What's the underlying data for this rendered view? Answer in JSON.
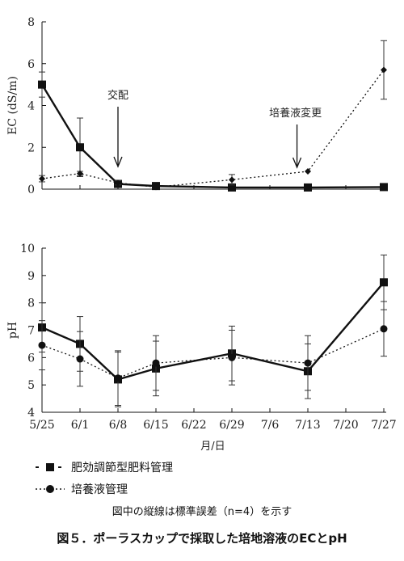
{
  "chart_data": {
    "x_ticks": [
      "5/25",
      "6/1",
      "6/8",
      "6/15",
      "6/22",
      "6/29",
      "7/6",
      "7/13",
      "7/20",
      "7/27"
    ],
    "xlabel": "月/日",
    "series_names": [
      "肥効調節型肥料管理",
      "培養液管理"
    ],
    "charts": [
      {
        "type": "line",
        "ylabel": "EC (dS/m)",
        "ylim": [
          0,
          8
        ],
        "yticks": [
          0,
          2,
          4,
          6,
          8
        ],
        "annotations": [
          {
            "text": "交配",
            "x": "6/8"
          },
          {
            "text": "培養液変更",
            "x": "7/11"
          }
        ],
        "series": [
          {
            "name": "肥効調節型肥料管理",
            "marker": "square",
            "style": "solid",
            "x": [
              "5/25",
              "6/1",
              "6/8",
              "6/15",
              "6/29",
              "7/13",
              "7/27"
            ],
            "values": [
              5.0,
              2.0,
              0.25,
              0.15,
              0.08,
              0.08,
              0.1
            ],
            "error": [
              0.6,
              1.4,
              0.15,
              0.05,
              0,
              0,
              0
            ]
          },
          {
            "name": "培養液管理",
            "marker": "diamond",
            "style": "dotted",
            "x": [
              "5/25",
              "6/1",
              "6/8",
              "6/15",
              "6/29",
              "7/13",
              "7/27"
            ],
            "values": [
              0.5,
              0.75,
              0.3,
              0.1,
              0.45,
              0.85,
              5.7
            ],
            "error": [
              0.15,
              0.1,
              0.1,
              0,
              0.25,
              0,
              1.4
            ]
          }
        ]
      },
      {
        "type": "line",
        "ylabel": "pH",
        "ylim": [
          4,
          10
        ],
        "yticks": [
          4,
          5,
          6,
          7,
          8,
          9,
          10
        ],
        "series": [
          {
            "name": "肥効調節型肥料管理",
            "marker": "square",
            "style": "solid",
            "x": [
              "5/25",
              "6/1",
              "6/8",
              "6/15",
              "6/29",
              "7/13",
              "7/27"
            ],
            "values": [
              7.1,
              6.5,
              5.2,
              5.6,
              6.15,
              5.5,
              8.75
            ],
            "error": [
              0.9,
              1.0,
              1.0,
              1.0,
              1.0,
              1.0,
              1.0
            ]
          },
          {
            "name": "培養液管理",
            "marker": "circle",
            "style": "dotted",
            "x": [
              "5/25",
              "6/1",
              "6/8",
              "6/15",
              "6/29",
              "7/13",
              "7/27"
            ],
            "values": [
              6.45,
              5.95,
              5.25,
              5.8,
              6.0,
              5.8,
              7.05
            ],
            "error": [
              0.9,
              1.0,
              1.0,
              1.0,
              1.0,
              1.0,
              1.0
            ]
          }
        ]
      }
    ]
  },
  "legend": {
    "item1": "肥効調節型肥料管理",
    "item2": "培養液管理"
  },
  "note": "図中の縦線は標準誤差（n=4）を示す",
  "caption": "図５．ポーラスカップで採取した培地溶液のECとpH"
}
